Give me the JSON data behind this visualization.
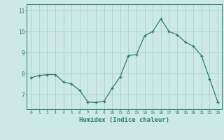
{
  "x": [
    0,
    1,
    2,
    3,
    4,
    5,
    6,
    7,
    8,
    9,
    10,
    11,
    12,
    13,
    14,
    15,
    16,
    17,
    18,
    19,
    20,
    21,
    22,
    23
  ],
  "y": [
    7.8,
    7.9,
    7.95,
    7.95,
    7.6,
    7.5,
    7.2,
    6.65,
    6.62,
    6.68,
    7.3,
    7.85,
    8.85,
    8.9,
    9.8,
    10.0,
    10.6,
    10.0,
    9.85,
    9.5,
    9.3,
    8.85,
    7.75,
    6.65
  ],
  "line_color": "#2e7d72",
  "marker": "+",
  "marker_size": 3.5,
  "bg_color": "#cce9e5",
  "grid_color": "#aacfca",
  "tick_color": "#2e7d72",
  "xlabel": "Humidex (Indice chaleur)",
  "xlabel_fontsize": 6.5,
  "ylabel_ticks": [
    7,
    8,
    9,
    10,
    11
  ],
  "xlim": [
    -0.5,
    23.5
  ],
  "ylim": [
    6.3,
    11.3
  ]
}
